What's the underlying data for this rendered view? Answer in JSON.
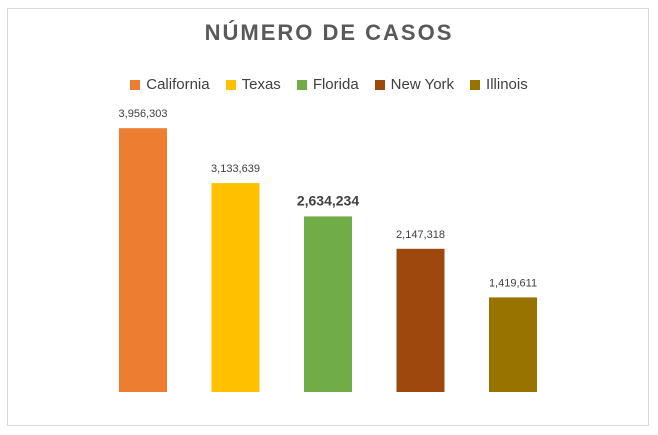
{
  "chart_data": {
    "type": "bar",
    "title": "NÚMERO DE CASOS",
    "categories": [
      "California",
      "Texas",
      "Florida",
      "New York",
      "Illinois"
    ],
    "values": [
      3956303,
      3133639,
      2634234,
      2147318,
      1419611
    ],
    "value_labels": [
      "3,956,303",
      "3,133,639",
      "2,634,234",
      "2,147,318",
      "1,419,611"
    ],
    "colors": [
      "#ed7d31",
      "#ffc000",
      "#70ad47",
      "#9e480e",
      "#997300"
    ],
    "emphasized_label_index": 2,
    "legend_position": "top",
    "grid": false,
    "ylim": [
      0,
      4500000
    ],
    "legend": [
      {
        "label": "California",
        "color": "#ed7d31"
      },
      {
        "label": "Texas",
        "color": "#ffc000"
      },
      {
        "label": "Florida",
        "color": "#70ad47"
      },
      {
        "label": "New York",
        "color": "#9e480e"
      },
      {
        "label": "Illinois",
        "color": "#997300"
      }
    ]
  }
}
